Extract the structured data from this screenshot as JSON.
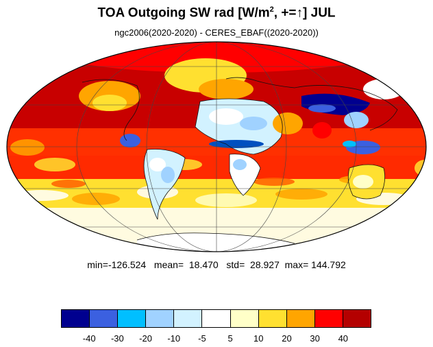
{
  "title": {
    "main": "TOA Outgoing SW rad [W/m",
    "exponent": "2",
    "suffix": ", +=",
    "arrow": "↑",
    "tail": "] JUL"
  },
  "subtitle": "ngc2006(2020-2020) - CERES_EBAF((2020-2020))",
  "stats": {
    "min_label": "min=",
    "min": "-126.524",
    "mean_label": "mean=",
    "mean": "18.470",
    "std_label": "std=",
    "std": "28.927",
    "max_label": "max=",
    "max": "144.792"
  },
  "colorbar": {
    "colors": [
      "#00008f",
      "#3b60e0",
      "#00bfff",
      "#a0d2ff",
      "#d2f2ff",
      "#ffffff",
      "#ffffc8",
      "#ffe030",
      "#ffa500",
      "#ff0000",
      "#b40000"
    ],
    "tick_labels": [
      "-40",
      "-30",
      "-20",
      "-10",
      "-5",
      "5",
      "10",
      "20",
      "30",
      "40"
    ]
  },
  "map": {
    "projection": "mollweide",
    "month": "JUL",
    "grid": true,
    "regions": [
      {
        "name": "southern-ocean-high-lat",
        "color": "#ffffff"
      },
      {
        "name": "southern-midlat",
        "color": "#ffe030"
      },
      {
        "name": "southern-subtropics",
        "color": "#ff0000"
      },
      {
        "name": "tropics",
        "color": "#ff0000"
      },
      {
        "name": "northern-ocean",
        "color": "#b40000"
      },
      {
        "name": "north-africa",
        "color": "#d2f2ff"
      },
      {
        "name": "tibet",
        "color": "#00008f"
      },
      {
        "name": "south-america",
        "color": "#d2f2ff"
      },
      {
        "name": "australia",
        "color": "#ffe030"
      },
      {
        "name": "antarctica",
        "color": "#ffffff"
      }
    ]
  }
}
